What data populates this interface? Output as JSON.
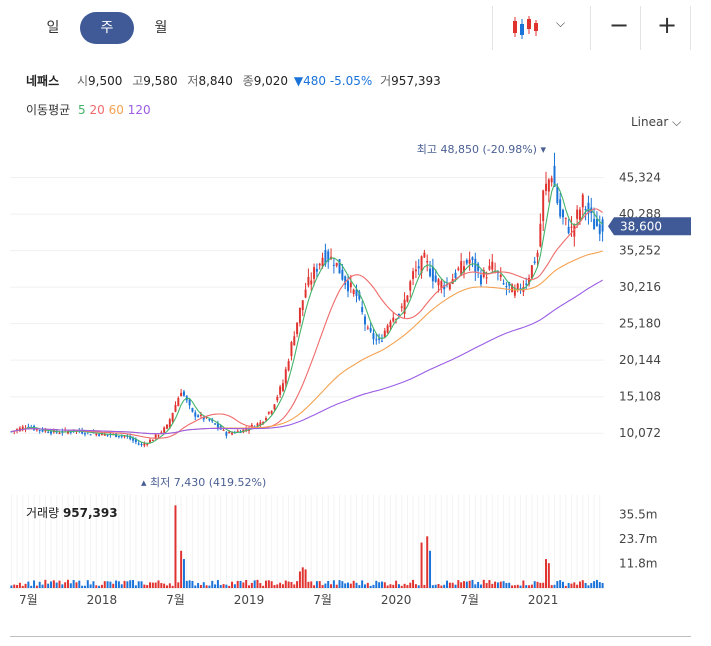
{
  "tabs": {
    "day": "일",
    "week": "주",
    "month": "월",
    "active": "week"
  },
  "quote": {
    "name": "네패스",
    "open_label": "시",
    "open": "9,500",
    "high_label": "고",
    "high": "9,580",
    "low_label": "저",
    "low": "8,840",
    "close_label": "종",
    "close": "9,020",
    "change": "▼480 -5.05%",
    "volume_label": "거",
    "volume": "957,393"
  },
  "ma_legend": {
    "title": "이동평균",
    "p5": "5",
    "p20": "20",
    "p60": "60",
    "p120": "120"
  },
  "scale_mode": "Linear ⌵",
  "volume_panel": {
    "label": "거래량",
    "value": "957,393"
  },
  "colors": {
    "up": "#e0322f",
    "down": "#1a73d9",
    "ma5": "#44b36a",
    "ma20": "#f06a6a",
    "ma60": "#f4a250",
    "ma120": "#9b5de5",
    "accent": "#3f5a96"
  },
  "chart_data": {
    "type": "candlestick",
    "y_ticks": [
      "10,072",
      "15,108",
      "20,144",
      "25,180",
      "30,216",
      "35,252",
      "40,288",
      "45,324"
    ],
    "y_range": [
      5000,
      50500
    ],
    "current_price": "38,600",
    "max_annotation": "최고 48,850 (-20.98%)",
    "min_annotation": "최저 7,430 (419.52%)",
    "x_labels": [
      "7월",
      "2018",
      "7월",
      "2019",
      "7월",
      "2020",
      "7월",
      "2021"
    ],
    "x_label_week": [
      6,
      32,
      58,
      84,
      110,
      136,
      162,
      188
    ],
    "volume_ticks": [
      "35.5m",
      "23.7m",
      "11.8m"
    ],
    "volume_max_m": 45,
    "weeks": 210,
    "close_anchors": [
      [
        0,
        10300
      ],
      [
        5,
        11000
      ],
      [
        10,
        10500
      ],
      [
        16,
        10200
      ],
      [
        22,
        10400
      ],
      [
        30,
        10000
      ],
      [
        40,
        9700
      ],
      [
        46,
        8400
      ],
      [
        50,
        9300
      ],
      [
        55,
        11000
      ],
      [
        60,
        16000
      ],
      [
        64,
        12800
      ],
      [
        70,
        11800
      ],
      [
        76,
        10000
      ],
      [
        82,
        10500
      ],
      [
        88,
        11500
      ],
      [
        92,
        13500
      ],
      [
        96,
        17000
      ],
      [
        100,
        24000
      ],
      [
        104,
        30000
      ],
      [
        110,
        34500
      ],
      [
        114,
        34000
      ],
      [
        118,
        31000
      ],
      [
        122,
        29000
      ],
      [
        126,
        24000
      ],
      [
        130,
        22500
      ],
      [
        134,
        26000
      ],
      [
        138,
        27000
      ],
      [
        142,
        32000
      ],
      [
        146,
        34000
      ],
      [
        150,
        31000
      ],
      [
        154,
        30500
      ],
      [
        158,
        32500
      ],
      [
        162,
        34000
      ],
      [
        166,
        31500
      ],
      [
        170,
        33000
      ],
      [
        174,
        30500
      ],
      [
        178,
        29500
      ],
      [
        182,
        31000
      ],
      [
        186,
        35000
      ],
      [
        188,
        43000
      ],
      [
        191,
        46000
      ],
      [
        194,
        40000
      ],
      [
        198,
        38000
      ],
      [
        202,
        42000
      ],
      [
        206,
        38800
      ],
      [
        209,
        38600
      ]
    ],
    "volume_spikes": [
      [
        58,
        40
      ],
      [
        60,
        18
      ],
      [
        61,
        14
      ],
      [
        103,
        10
      ],
      [
        145,
        22
      ],
      [
        147,
        25
      ],
      [
        148,
        18
      ],
      [
        189,
        14
      ],
      [
        190,
        12
      ],
      [
        102,
        8
      ],
      [
        104,
        9
      ]
    ]
  }
}
